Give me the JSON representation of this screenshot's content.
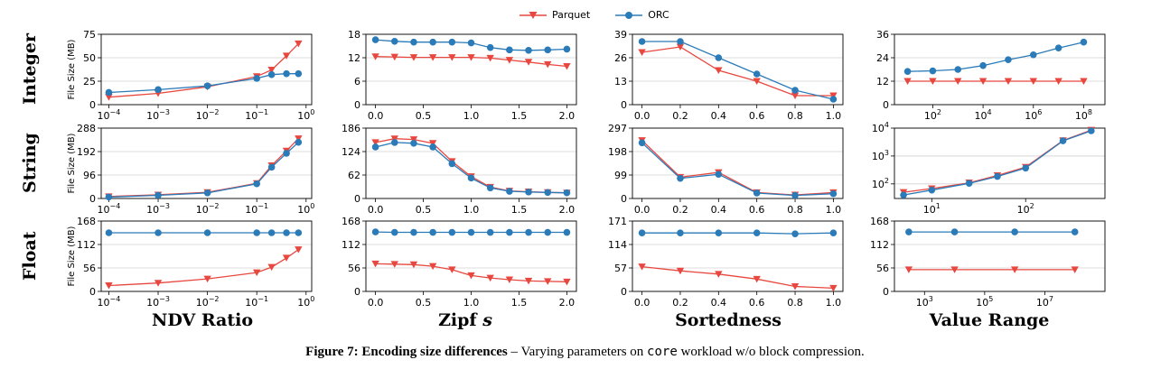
{
  "legend": [
    {
      "name": "Parquet",
      "color": "#e8473f",
      "marker": "triangle-down"
    },
    {
      "name": "ORC",
      "color": "#2b7bb9",
      "marker": "circle"
    }
  ],
  "row_labels": [
    "Integer",
    "String",
    "Float"
  ],
  "col_labels": [
    {
      "text": "NDV Ratio",
      "italic": ""
    },
    {
      "text": "Zipf ",
      "italic": "s"
    },
    {
      "text": "Sortedness",
      "italic": ""
    },
    {
      "text": "Value Range",
      "italic": ""
    }
  ],
  "caption": {
    "bold": "Figure 7: Encoding size differences",
    "text_before": " – Varying parameters on ",
    "mono": "core",
    "text_after": " workload w/o block compression."
  },
  "chart_data": [
    {
      "type": "line",
      "row": "Integer",
      "col": "NDV Ratio",
      "xscale": "log",
      "xlim": [
        7e-05,
        1.3
      ],
      "xticks": [
        0.0001,
        0.001,
        0.01,
        0.1,
        1
      ],
      "xticklabels": [
        "10^-4",
        "10^-3",
        "10^-2",
        "10^-1",
        "10^0"
      ],
      "ylim": [
        0,
        75
      ],
      "yticks": [
        0,
        25,
        50,
        75
      ],
      "ylabel": "File Size (MB)",
      "x": [
        0.0001,
        0.001,
        0.01,
        0.1,
        0.2,
        0.4,
        0.7
      ],
      "series": [
        {
          "name": "Parquet",
          "values": [
            8,
            12,
            19,
            30,
            37,
            52,
            65
          ]
        },
        {
          "name": "ORC",
          "values": [
            13,
            16,
            20,
            28,
            32,
            33,
            33
          ]
        }
      ]
    },
    {
      "type": "line",
      "row": "Integer",
      "col": "Zipf s",
      "xscale": "linear",
      "xlim": [
        -0.1,
        2.1
      ],
      "xticks": [
        0.0,
        0.5,
        1.0,
        1.5,
        2.0
      ],
      "xticklabels": [
        "0.0",
        "0.5",
        "1.0",
        "1.5",
        "2.0"
      ],
      "ylim": [
        0,
        18
      ],
      "yticks": [
        0,
        6,
        12,
        18
      ],
      "ylabel": "",
      "x": [
        0.0,
        0.2,
        0.4,
        0.6,
        0.8,
        1.0,
        1.2,
        1.4,
        1.6,
        1.8,
        2.0
      ],
      "series": [
        {
          "name": "Parquet",
          "values": [
            12.3,
            12.2,
            12.1,
            12.1,
            12.1,
            12.1,
            11.9,
            11.4,
            10.9,
            10.3,
            9.8
          ]
        },
        {
          "name": "ORC",
          "values": [
            16.6,
            16.2,
            16.0,
            16.0,
            16.0,
            15.8,
            14.6,
            14.0,
            13.9,
            14.0,
            14.2
          ]
        }
      ]
    },
    {
      "type": "line",
      "row": "Integer",
      "col": "Sortedness",
      "xscale": "linear",
      "xlim": [
        -0.05,
        1.05
      ],
      "xticks": [
        0.0,
        0.2,
        0.4,
        0.6,
        0.8,
        1.0
      ],
      "xticklabels": [
        "0.0",
        "0.2",
        "0.4",
        "0.6",
        "0.8",
        "1.0"
      ],
      "ylim": [
        0,
        39
      ],
      "yticks": [
        0,
        13,
        26,
        39
      ],
      "ylabel": "",
      "x": [
        0.0,
        0.2,
        0.4,
        0.6,
        0.8,
        1.0
      ],
      "series": [
        {
          "name": "Parquet",
          "values": [
            29,
            32,
            19,
            13,
            5,
            5
          ]
        },
        {
          "name": "ORC",
          "values": [
            35,
            35,
            26,
            17,
            8,
            3
          ]
        }
      ]
    },
    {
      "type": "line",
      "row": "Integer",
      "col": "Value Range",
      "xscale": "log",
      "xlim": [
        3,
        700000000
      ],
      "xticks": [
        100,
        10000,
        1000000,
        100000000
      ],
      "xticklabels": [
        "10^2",
        "10^4",
        "10^6",
        "10^8"
      ],
      "ylim": [
        0,
        36
      ],
      "yticks": [
        0,
        12,
        24,
        36
      ],
      "ylabel": "",
      "x": [
        10,
        100,
        1000,
        10000,
        100000,
        1000000,
        10000000,
        100000000
      ],
      "series": [
        {
          "name": "Parquet",
          "values": [
            12,
            12,
            12,
            12,
            12,
            12,
            12,
            12
          ]
        },
        {
          "name": "ORC",
          "values": [
            17,
            17.3,
            18,
            20,
            23,
            25.5,
            29,
            32
          ]
        }
      ]
    },
    {
      "type": "line",
      "row": "String",
      "col": "NDV Ratio",
      "xscale": "log",
      "xlim": [
        7e-05,
        1.3
      ],
      "xticks": [
        0.0001,
        0.001,
        0.01,
        0.1,
        1
      ],
      "xticklabels": [
        "10^-4",
        "10^-3",
        "10^-2",
        "10^-1",
        "10^0"
      ],
      "ylim": [
        0,
        288
      ],
      "yticks": [
        0,
        96,
        192,
        288
      ],
      "ylabel": "File Size (MB)",
      "x": [
        0.0001,
        0.001,
        0.01,
        0.1,
        0.2,
        0.4,
        0.7
      ],
      "series": [
        {
          "name": "Parquet",
          "values": [
            8,
            15,
            25,
            62,
            135,
            195,
            245
          ]
        },
        {
          "name": "ORC",
          "values": [
            6,
            13,
            23,
            60,
            128,
            185,
            230
          ]
        }
      ]
    },
    {
      "type": "line",
      "row": "String",
      "col": "Zipf s",
      "xscale": "linear",
      "xlim": [
        -0.1,
        2.1
      ],
      "xticks": [
        0.0,
        0.5,
        1.0,
        1.5,
        2.0
      ],
      "xticklabels": [
        "0.0",
        "0.5",
        "1.0",
        "1.5",
        "2.0"
      ],
      "ylim": [
        0,
        186
      ],
      "yticks": [
        0,
        62,
        124,
        186
      ],
      "ylabel": "",
      "x": [
        0.0,
        0.2,
        0.4,
        0.6,
        0.8,
        1.0,
        1.2,
        1.4,
        1.6,
        1.8,
        2.0
      ],
      "series": [
        {
          "name": "Parquet",
          "values": [
            148,
            158,
            156,
            146,
            98,
            58,
            30,
            20,
            18,
            16,
            15
          ]
        },
        {
          "name": "ORC",
          "values": [
            136,
            148,
            146,
            136,
            92,
            54,
            28,
            19,
            17,
            16,
            15
          ]
        }
      ]
    },
    {
      "type": "line",
      "row": "String",
      "col": "Sortedness",
      "xscale": "linear",
      "xlim": [
        -0.05,
        1.05
      ],
      "xticks": [
        0.0,
        0.2,
        0.4,
        0.6,
        0.8,
        1.0
      ],
      "xticklabels": [
        "0.0",
        "0.2",
        "0.4",
        "0.6",
        "0.8",
        "1.0"
      ],
      "ylim": [
        0,
        297
      ],
      "yticks": [
        0,
        99,
        198,
        297
      ],
      "ylabel": "",
      "x": [
        0.0,
        0.2,
        0.4,
        0.6,
        0.8,
        1.0
      ],
      "series": [
        {
          "name": "Parquet",
          "values": [
            245,
            90,
            110,
            25,
            15,
            25
          ]
        },
        {
          "name": "ORC",
          "values": [
            235,
            85,
            102,
            23,
            13,
            20
          ]
        }
      ]
    },
    {
      "type": "line",
      "row": "String",
      "col": "Value Range",
      "xscale": "log",
      "xlim": [
        4,
        700
      ],
      "xticks": [
        10,
        100
      ],
      "xticklabels": [
        "10^1",
        "10^2"
      ],
      "yscale": "log",
      "ylim": [
        30,
        10000
      ],
      "yticks": [
        100,
        1000,
        10000
      ],
      "yticklabels": [
        "10^2",
        "10^3",
        "10^4"
      ],
      "ylabel": "",
      "x": [
        5,
        10,
        25,
        50,
        100,
        250,
        500
      ],
      "series": [
        {
          "name": "Parquet",
          "values": [
            50,
            68,
            110,
            200,
            400,
            3600,
            8500
          ]
        },
        {
          "name": "ORC",
          "values": [
            40,
            60,
            105,
            185,
            370,
            3500,
            8000
          ]
        }
      ]
    },
    {
      "type": "line",
      "row": "Float",
      "col": "NDV Ratio",
      "xscale": "log",
      "xlim": [
        7e-05,
        1.3
      ],
      "xticks": [
        0.0001,
        0.001,
        0.01,
        0.1,
        1
      ],
      "xticklabels": [
        "10^-4",
        "10^-3",
        "10^-2",
        "10^-1",
        "10^0"
      ],
      "ylim": [
        0,
        168
      ],
      "yticks": [
        0,
        56,
        112,
        168
      ],
      "ylabel": "File Size (MB)",
      "x": [
        0.0001,
        0.001,
        0.01,
        0.1,
        0.2,
        0.4,
        0.7
      ],
      "series": [
        {
          "name": "Parquet",
          "values": [
            14,
            20,
            30,
            45,
            58,
            80,
            100
          ]
        },
        {
          "name": "ORC",
          "values": [
            140,
            140,
            140,
            140,
            140,
            140,
            140
          ]
        }
      ]
    },
    {
      "type": "line",
      "row": "Float",
      "col": "Zipf s",
      "xscale": "linear",
      "xlim": [
        -0.1,
        2.1
      ],
      "xticks": [
        0.0,
        0.5,
        1.0,
        1.5,
        2.0
      ],
      "xticklabels": [
        "0.0",
        "0.5",
        "1.0",
        "1.5",
        "2.0"
      ],
      "ylim": [
        0,
        168
      ],
      "yticks": [
        0,
        56,
        112,
        168
      ],
      "ylabel": "",
      "x": [
        0.0,
        0.2,
        0.4,
        0.6,
        0.8,
        1.0,
        1.2,
        1.4,
        1.6,
        1.8,
        2.0
      ],
      "series": [
        {
          "name": "Parquet",
          "values": [
            66,
            65,
            64,
            60,
            52,
            38,
            32,
            28,
            25,
            24,
            23
          ]
        },
        {
          "name": "ORC",
          "values": [
            142,
            141,
            141,
            141,
            141,
            141,
            141,
            141,
            141,
            141,
            141
          ]
        }
      ]
    },
    {
      "type": "line",
      "row": "Float",
      "col": "Sortedness",
      "xscale": "linear",
      "xlim": [
        -0.05,
        1.05
      ],
      "xticks": [
        0.0,
        0.2,
        0.4,
        0.6,
        0.8,
        1.0
      ],
      "xticklabels": [
        "0.0",
        "0.2",
        "0.4",
        "0.6",
        "0.8",
        "1.0"
      ],
      "ylim": [
        0,
        171
      ],
      "yticks": [
        0,
        57,
        114,
        171
      ],
      "ylabel": "",
      "x": [
        0.0,
        0.2,
        0.4,
        0.6,
        0.8,
        1.0
      ],
      "series": [
        {
          "name": "Parquet",
          "values": [
            60,
            50,
            42,
            30,
            12,
            8
          ]
        },
        {
          "name": "ORC",
          "values": [
            142,
            142,
            142,
            142,
            140,
            142
          ]
        }
      ]
    },
    {
      "type": "line",
      "row": "Float",
      "col": "Value Range",
      "xscale": "log",
      "xlim": [
        100,
        1000000000
      ],
      "xticks": [
        1000,
        100000,
        10000000
      ],
      "xticklabels": [
        "10^3",
        "10^5",
        "10^7"
      ],
      "ylim": [
        0,
        168
      ],
      "yticks": [
        0,
        56,
        112,
        168
      ],
      "ylabel": "",
      "x": [
        300,
        10000,
        1000000,
        100000000
      ],
      "series": [
        {
          "name": "Parquet",
          "values": [
            52,
            52,
            52,
            52
          ]
        },
        {
          "name": "ORC",
          "values": [
            142,
            142,
            142,
            142
          ]
        }
      ]
    }
  ]
}
